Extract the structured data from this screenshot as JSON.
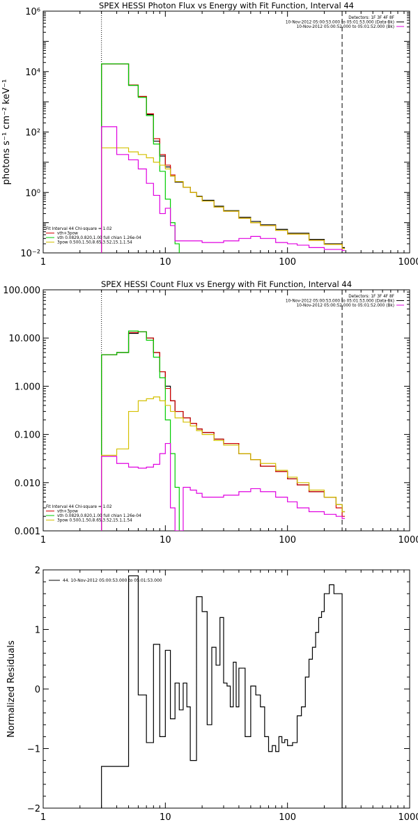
{
  "chart_data": [
    {
      "type": "line",
      "title": "SPEX HESSI Photon Flux vs Energy with Fit Function, Interval 44",
      "xlabel": "",
      "ylabel": "photons s⁻¹ cm⁻² keV⁻¹",
      "xscale": "log",
      "yscale": "log",
      "xlim": [
        1,
        1000
      ],
      "ylim": [
        0.01,
        1000000
      ],
      "xticks": [
        {
          "v": 1,
          "label": "1"
        },
        {
          "v": 10,
          "label": "10"
        },
        {
          "v": 100,
          "label": "100"
        },
        {
          "v": 1000,
          "label": "1000"
        }
      ],
      "yticks": [
        {
          "v": 0.01,
          "label": "10⁻²"
        },
        {
          "v": 1,
          "label": "10⁰"
        },
        {
          "v": 100,
          "label": "10²"
        },
        {
          "v": 10000,
          "label": "10⁴"
        },
        {
          "v": 1000000,
          "label": "10⁶"
        }
      ],
      "vlines": [
        {
          "x": 3,
          "style": "dotted"
        },
        {
          "x": 280,
          "style": "dashed"
        }
      ],
      "info": [
        "Detectors: 1F 3F 4F 8F",
        "10-Nov-2012 05:00:53.000 to 05:01:53.000 (Data-Bk)",
        "10-Nov-2012 05:00:52.000 to 05:01:52.000 (Bk)"
      ],
      "fit_text": [
        "Fit Interval 44   Chi-square = 1.02",
        "vth+3pow",
        "vth 0.0829,0.820,1.00  full chian 1.26e-04",
        "3pow 0.500,1.50,8.65,3.52,15.1,1.54"
      ],
      "series": [
        {
          "name": "Data-Bk",
          "color": "#000000",
          "x": [
            3,
            4,
            5,
            6,
            7,
            8,
            9,
            10,
            11,
            12,
            14,
            16,
            18,
            20,
            25,
            30,
            40,
            50,
            60,
            80,
            100,
            150,
            200,
            280
          ],
          "y": [
            18000,
            18000,
            3500,
            1500,
            380,
            50,
            16,
            7,
            3.5,
            2.2,
            1.5,
            1.0,
            0.75,
            0.55,
            0.35,
            0.25,
            0.15,
            0.11,
            0.085,
            0.06,
            0.045,
            0.028,
            0.02,
            0.015
          ]
        },
        {
          "name": "vth+3pow",
          "color": "#d40000",
          "x": [
            3,
            4,
            5,
            6,
            7,
            8,
            9,
            10,
            11,
            12,
            14,
            16,
            18,
            20,
            25,
            30,
            40,
            50,
            60,
            80,
            100,
            150,
            200,
            280
          ],
          "y": [
            18000,
            18000,
            3600,
            1500,
            400,
            60,
            18,
            8,
            3.8,
            2.3,
            1.5,
            1.0,
            0.72,
            0.52,
            0.33,
            0.24,
            0.14,
            0.1,
            0.08,
            0.056,
            0.042,
            0.026,
            0.019,
            0.014
          ]
        },
        {
          "name": "vth",
          "color": "#00cc00",
          "x": [
            3,
            4,
            5,
            6,
            7,
            8,
            9,
            10,
            11,
            12,
            13
          ],
          "y": [
            18000,
            18000,
            3500,
            1400,
            350,
            40,
            5,
            0.6,
            0.1,
            0.02,
            0.005
          ]
        },
        {
          "name": "3pow",
          "color": "#d4c000",
          "x": [
            3,
            4,
            5,
            6,
            7,
            8,
            9,
            10,
            11,
            12,
            14,
            16,
            18,
            20,
            25,
            30,
            40,
            50,
            60,
            80,
            100,
            150,
            200,
            280
          ],
          "y": [
            30,
            30,
            22,
            18,
            14,
            10,
            8,
            6,
            3.5,
            2.3,
            1.5,
            1.0,
            0.72,
            0.52,
            0.33,
            0.24,
            0.14,
            0.1,
            0.08,
            0.056,
            0.042,
            0.026,
            0.019,
            0.014
          ]
        },
        {
          "name": "Bk",
          "color": "#e000e0",
          "x": [
            3,
            4,
            5,
            6,
            7,
            8,
            9,
            10,
            11,
            12,
            13,
            15,
            20,
            30,
            40,
            50,
            60,
            70,
            80,
            100,
            120,
            150,
            200,
            280
          ],
          "y": [
            150,
            18,
            12,
            6,
            2,
            0.8,
            0.2,
            0.3,
            0.08,
            0.025,
            0.025,
            0.025,
            0.022,
            0.025,
            0.03,
            0.035,
            0.03,
            0.03,
            0.022,
            0.02,
            0.018,
            0.015,
            0.013,
            0.012
          ]
        }
      ]
    },
    {
      "type": "line",
      "title": "SPEX HESSI Count Flux vs Energy with Fit Function, Interval 44",
      "xlabel": "",
      "ylabel": "",
      "xscale": "log",
      "yscale": "log",
      "xlim": [
        1,
        1000
      ],
      "ylim": [
        0.001,
        100
      ],
      "xticks": [
        {
          "v": 1,
          "label": "1"
        },
        {
          "v": 10,
          "label": "10"
        },
        {
          "v": 100,
          "label": "100"
        },
        {
          "v": 1000,
          "label": "1000"
        }
      ],
      "yticks": [
        {
          "v": 0.001,
          "label": "0.001"
        },
        {
          "v": 0.01,
          "label": "0.010"
        },
        {
          "v": 0.1,
          "label": "0.100"
        },
        {
          "v": 1,
          "label": "1.000"
        },
        {
          "v": 10,
          "label": "10.000"
        },
        {
          "v": 100,
          "label": "100.000"
        }
      ],
      "vlines": [
        {
          "x": 3,
          "style": "dotted"
        },
        {
          "x": 280,
          "style": "dashed"
        }
      ],
      "info": [
        "Detectors: 1F 3F 4F 8F",
        "10-Nov-2012 05:00:53.000 to 05:01:53.000 (Data-Bk)",
        "10-Nov-2012 05:00:52.000 to 05:01:52.000 (Bk)"
      ],
      "fit_text": [
        "Fit Interval 44   Chi-square = 1.02",
        "vth+3pow",
        "vth 0.0829,0.820,1.00  full chian 1.26e-04",
        "3pow 0.500,1.50,8.65,3.52,15.1,1.54"
      ],
      "series": [
        {
          "name": "Data-Bk",
          "color": "#000000",
          "x": [
            3,
            4,
            5,
            6,
            7,
            8,
            9,
            10,
            11,
            12,
            14,
            16,
            18,
            20,
            25,
            30,
            40,
            50,
            60,
            80,
            100,
            120,
            150,
            200,
            250,
            280
          ],
          "y": [
            4.5,
            5.0,
            12.5,
            13.5,
            10.0,
            5.0,
            2.0,
            1.0,
            0.5,
            0.3,
            0.22,
            0.17,
            0.13,
            0.11,
            0.08,
            0.065,
            0.04,
            0.03,
            0.022,
            0.017,
            0.012,
            0.009,
            0.0065,
            0.005,
            0.0035,
            0.0025
          ]
        },
        {
          "name": "vth+3pow",
          "color": "#d40000",
          "x": [
            3,
            4,
            5,
            6,
            7,
            8,
            9,
            10,
            11,
            12,
            14,
            16,
            18,
            20,
            25,
            30,
            40,
            50,
            60,
            80,
            100,
            120,
            150,
            200,
            250,
            280
          ],
          "y": [
            4.5,
            5.0,
            13.0,
            13.5,
            10.0,
            5.0,
            2.0,
            0.9,
            0.5,
            0.3,
            0.22,
            0.17,
            0.13,
            0.11,
            0.08,
            0.065,
            0.04,
            0.03,
            0.022,
            0.017,
            0.012,
            0.009,
            0.0065,
            0.005,
            0.003,
            0.002
          ]
        },
        {
          "name": "vth",
          "color": "#00cc00",
          "x": [
            3,
            4,
            5,
            6,
            7,
            8,
            9,
            10,
            11,
            12,
            13
          ],
          "y": [
            4.5,
            5.0,
            14.0,
            13.5,
            9.0,
            4.0,
            1.5,
            0.2,
            0.04,
            0.008,
            0.001
          ]
        },
        {
          "name": "3pow",
          "color": "#d4c000",
          "x": [
            3,
            4,
            5,
            6,
            7,
            8,
            9,
            10,
            11,
            12,
            14,
            16,
            18,
            20,
            25,
            30,
            40,
            50,
            60,
            80,
            100,
            120,
            150,
            200,
            250,
            280
          ],
          "y": [
            0.037,
            0.05,
            0.3,
            0.5,
            0.55,
            0.6,
            0.5,
            0.4,
            0.3,
            0.22,
            0.18,
            0.15,
            0.12,
            0.1,
            0.075,
            0.06,
            0.04,
            0.03,
            0.025,
            0.018,
            0.013,
            0.01,
            0.007,
            0.005,
            0.0035,
            0.0025
          ]
        },
        {
          "name": "Bk",
          "color": "#e000e0",
          "x": [
            3,
            4,
            5,
            6,
            7,
            8,
            9,
            10,
            11,
            12,
            14,
            16,
            18,
            20,
            25,
            30,
            40,
            50,
            60,
            80,
            100,
            120,
            150,
            200,
            250,
            280
          ],
          "y": [
            0.035,
            0.025,
            0.021,
            0.02,
            0.021,
            0.024,
            0.04,
            0.065,
            0.003,
            0.001,
            0.008,
            0.007,
            0.006,
            0.005,
            0.005,
            0.0055,
            0.0065,
            0.0075,
            0.0065,
            0.005,
            0.004,
            0.003,
            0.0025,
            0.0022,
            0.002,
            0.0018
          ]
        }
      ]
    },
    {
      "type": "line",
      "title": "",
      "xlabel": "",
      "ylabel": "Normalized Residuals",
      "xscale": "log",
      "yscale": "linear",
      "xlim": [
        1,
        1000
      ],
      "ylim": [
        -2,
        2
      ],
      "xticks": [
        {
          "v": 1,
          "label": "1"
        },
        {
          "v": 10,
          "label": "10"
        },
        {
          "v": 100,
          "label": "100"
        },
        {
          "v": 1000,
          "label": "1000"
        }
      ],
      "yticks": [
        {
          "v": -2,
          "label": "−2"
        },
        {
          "v": -1,
          "label": "−1"
        },
        {
          "v": 0,
          "label": "0"
        },
        {
          "v": 1,
          "label": "1"
        },
        {
          "v": 2,
          "label": "2"
        }
      ],
      "legend": "44. 10-Nov-2012 05:00:53.000 to 05:01:53.000",
      "series": [
        {
          "name": "44. 10-Nov-2012 05:00:53.000 to 05:01:53.000",
          "color": "#000000",
          "x": [
            3,
            4,
            5,
            6,
            7,
            8,
            9,
            10,
            11,
            12,
            13,
            14,
            15,
            16,
            18,
            20,
            22,
            24,
            26,
            28,
            30,
            32,
            34,
            36,
            38,
            40,
            45,
            50,
            55,
            60,
            65,
            70,
            75,
            80,
            85,
            90,
            95,
            100,
            110,
            120,
            130,
            140,
            150,
            160,
            170,
            180,
            190,
            200,
            220,
            240,
            260,
            280
          ],
          "y": [
            -1.3,
            -1.3,
            1.9,
            -0.1,
            -0.9,
            0.75,
            -0.8,
            0.65,
            -0.5,
            0.1,
            -0.35,
            0.1,
            -0.3,
            -1.2,
            1.55,
            1.3,
            -0.6,
            0.7,
            0.4,
            1.2,
            0.1,
            0.05,
            -0.3,
            0.45,
            -0.3,
            0.35,
            -0.8,
            0.05,
            -0.1,
            -0.3,
            -0.8,
            -1.05,
            -0.95,
            -1.05,
            -0.8,
            -0.9,
            -0.85,
            -0.95,
            -0.9,
            -0.45,
            -0.3,
            0.2,
            0.5,
            0.7,
            0.95,
            1.2,
            1.3,
            1.6,
            1.75,
            1.6,
            1.6,
            -2.0
          ]
        }
      ]
    }
  ]
}
